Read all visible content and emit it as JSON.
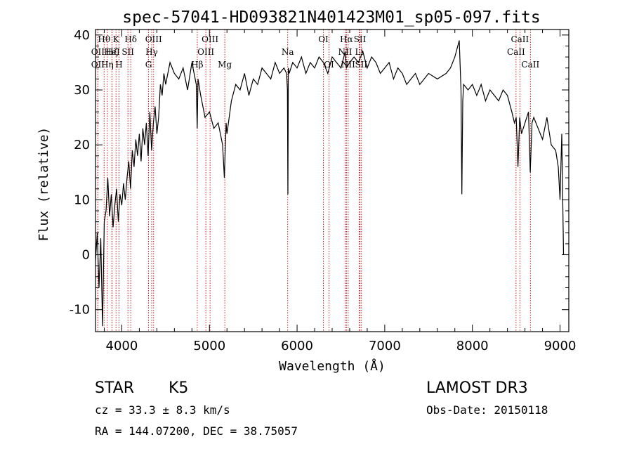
{
  "chart_data": {
    "type": "line",
    "title": "spec-57041-HD093821N401423M01_sp05-097.fits",
    "xlabel": "Wavelength (Å)",
    "ylabel": "Flux (relative)",
    "xlim": [
      3700,
      9100
    ],
    "ylim": [
      -14,
      41
    ],
    "xticks": [
      4000,
      5000,
      6000,
      7000,
      8000,
      9000
    ],
    "yticks": [
      -10,
      0,
      10,
      20,
      30,
      40
    ],
    "series": [
      {
        "name": "flux",
        "x": [
          3700,
          3720,
          3740,
          3760,
          3780,
          3800,
          3820,
          3840,
          3860,
          3880,
          3900,
          3920,
          3940,
          3960,
          3980,
          4000,
          4020,
          4040,
          4060,
          4080,
          4100,
          4120,
          4140,
          4160,
          4180,
          4200,
          4220,
          4240,
          4260,
          4280,
          4300,
          4320,
          4340,
          4360,
          4380,
          4400,
          4420,
          4440,
          4460,
          4480,
          4500,
          4550,
          4600,
          4650,
          4700,
          4750,
          4800,
          4850,
          4860,
          4870,
          4900,
          4950,
          5000,
          5050,
          5100,
          5150,
          5170,
          5180,
          5190,
          5200,
          5250,
          5300,
          5350,
          5400,
          5450,
          5500,
          5550,
          5600,
          5650,
          5700,
          5750,
          5800,
          5850,
          5880,
          5890,
          5895,
          5900,
          5910,
          5950,
          6000,
          6050,
          6100,
          6150,
          6200,
          6250,
          6300,
          6350,
          6400,
          6450,
          6500,
          6550,
          6563,
          6600,
          6650,
          6700,
          6750,
          6800,
          6850,
          6900,
          6950,
          7000,
          7050,
          7100,
          7150,
          7200,
          7250,
          7300,
          7350,
          7400,
          7500,
          7600,
          7700,
          7750,
          7800,
          7850,
          7870,
          7880,
          7890,
          7900,
          7950,
          8000,
          8050,
          8100,
          8150,
          8200,
          8250,
          8300,
          8350,
          8400,
          8450,
          8480,
          8500,
          8520,
          8540,
          8560,
          8600,
          8640,
          8660,
          8680,
          8700,
          8750,
          8800,
          8850,
          8900,
          8950,
          8980,
          9000,
          9020,
          9040
        ],
        "y": [
          -1,
          4,
          -6,
          3,
          -13,
          6,
          8,
          14,
          7,
          11,
          5,
          9,
          12,
          6,
          11,
          9,
          13,
          10,
          14,
          17,
          12,
          19,
          16,
          21,
          18,
          22,
          17,
          23,
          20,
          24,
          18,
          26,
          19,
          24,
          27,
          22,
          25,
          31,
          29,
          33,
          31,
          35,
          33,
          32,
          34,
          30,
          35,
          31,
          23,
          32,
          29,
          25,
          26,
          23,
          24,
          20,
          14,
          19,
          24,
          22,
          28,
          31,
          30,
          33,
          29,
          32,
          31,
          34,
          33,
          32,
          35,
          33,
          34,
          33,
          30,
          11,
          34,
          33,
          35,
          34,
          36,
          33,
          35,
          34,
          36,
          35,
          33,
          36,
          35,
          34,
          37,
          34,
          35,
          36,
          35,
          37,
          34,
          36,
          35,
          33,
          34,
          35,
          32,
          34,
          33,
          31,
          32,
          33,
          31,
          33,
          32,
          33,
          34,
          36,
          39,
          30,
          11,
          28,
          31,
          30,
          31,
          29,
          31,
          28,
          30,
          29,
          28,
          30,
          29,
          26,
          24,
          25,
          16,
          25,
          22,
          24,
          26,
          15,
          24,
          25,
          23,
          21,
          25,
          20,
          19,
          16,
          10,
          22,
          0
        ]
      }
    ],
    "line_markers": [
      {
        "name": "Hθ",
        "x": 3798,
        "row": 0
      },
      {
        "name": "OII",
        "x": 3727,
        "row": 1
      },
      {
        "name": "OII",
        "x": 3727,
        "row": 2
      },
      {
        "name": "Hη",
        "x": 3835,
        "row": 2
      },
      {
        "name": "Hζ",
        "x": 3889,
        "row": 1
      },
      {
        "name": "HeI",
        "x": 3889,
        "row": 1
      },
      {
        "name": "K",
        "x": 3934,
        "row": 0
      },
      {
        "name": "SII",
        "x": 4070,
        "row": 1
      },
      {
        "name": "H",
        "x": 3968,
        "row": 2
      },
      {
        "name": "Hδ",
        "x": 4102,
        "row": 0
      },
      {
        "name": "OIII",
        "x": 4363,
        "row": 0
      },
      {
        "name": "Hγ",
        "x": 4341,
        "row": 1
      },
      {
        "name": "G",
        "x": 4305,
        "row": 2
      },
      {
        "name": "Hβ",
        "x": 4861,
        "row": 2
      },
      {
        "name": "OIII",
        "x": 4959,
        "row": 1
      },
      {
        "name": "OIII",
        "x": 5007,
        "row": 0
      },
      {
        "name": "Mg",
        "x": 5175,
        "row": 2
      },
      {
        "name": "Na",
        "x": 5893,
        "row": 1
      },
      {
        "name": "OI",
        "x": 6300,
        "row": 0
      },
      {
        "name": "OI",
        "x": 6364,
        "row": 2
      },
      {
        "name": "Hα",
        "x": 6563,
        "row": 0
      },
      {
        "name": "NII",
        "x": 6548,
        "row": 1
      },
      {
        "name": "NII",
        "x": 6583,
        "row": 2
      },
      {
        "name": "SII",
        "x": 6717,
        "row": 0
      },
      {
        "name": "Li",
        "x": 6708,
        "row": 1
      },
      {
        "name": "SII",
        "x": 6731,
        "row": 2
      },
      {
        "name": "CaII",
        "x": 8542,
        "row": 0
      },
      {
        "name": "CaII",
        "x": 8498,
        "row": 1
      },
      {
        "name": "CaII",
        "x": 8662,
        "row": 2
      }
    ]
  },
  "info": {
    "object_class": "STAR",
    "subclass": "K5",
    "survey": "LAMOST DR3",
    "cz": "cz = 33.3 ± 8.3 km/s",
    "obs_date": "Obs-Date: 20150118",
    "coords": "RA = 144.07200, DEC =  38.75057"
  },
  "colors": {
    "spectrum": "#000000",
    "marker_line": "#cc0000",
    "background": "#ffffff"
  }
}
